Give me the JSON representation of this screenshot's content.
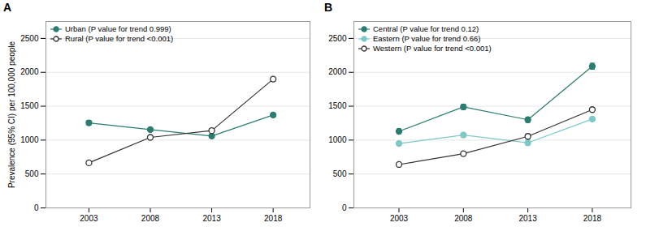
{
  "chart_data": [
    {
      "type": "line",
      "title": "A",
      "x": [
        2003,
        2008,
        2013,
        2018
      ],
      "xlim": [
        1999.5,
        2021
      ],
      "xticks": [
        2003,
        2008,
        2013,
        2018
      ],
      "ylim": [
        0,
        2750
      ],
      "yticks": [
        0,
        500,
        1000,
        1500,
        2000,
        2500
      ],
      "ylabel": "Prevalence (95% CI) per 100,000 people",
      "grid": true,
      "legend": "upper left",
      "series": [
        {
          "name": "Urban (P value for trend 0.999)",
          "color": "#2a7d6f",
          "marker": "circle",
          "values": [
            1255,
            1155,
            1060,
            1370
          ],
          "yerr": [
            35,
            30,
            25,
            30
          ]
        },
        {
          "name": "Rural (P value for trend <0.001)",
          "color": "#333333",
          "marker": "circle-open",
          "values": [
            665,
            1040,
            1140,
            1900
          ],
          "yerr": [
            25,
            30,
            30,
            30
          ]
        }
      ]
    },
    {
      "type": "line",
      "title": "B",
      "x": [
        2003,
        2008,
        2013,
        2018
      ],
      "xlim": [
        1999.5,
        2021
      ],
      "xticks": [
        2003,
        2008,
        2013,
        2018
      ],
      "ylim": [
        0,
        2750
      ],
      "yticks": [
        0,
        500,
        1000,
        1500,
        2000,
        2500
      ],
      "grid": true,
      "legend": "upper left",
      "series": [
        {
          "name": "Central (P value for trend 0.12)",
          "color": "#2a7d6f",
          "marker": "circle",
          "values": [
            1130,
            1490,
            1300,
            2090
          ],
          "yerr": [
            35,
            40,
            40,
            45
          ]
        },
        {
          "name": "Eastern (P value for trend 0.66)",
          "color": "#7ec8c8",
          "marker": "circle",
          "values": [
            950,
            1075,
            960,
            1310
          ],
          "yerr": [
            30,
            35,
            35,
            30
          ]
        },
        {
          "name": "Western (P value for trend <0.001)",
          "color": "#333333",
          "marker": "circle-open",
          "values": [
            640,
            800,
            1055,
            1450
          ],
          "yerr": [
            25,
            30,
            35,
            30
          ]
        }
      ]
    }
  ]
}
